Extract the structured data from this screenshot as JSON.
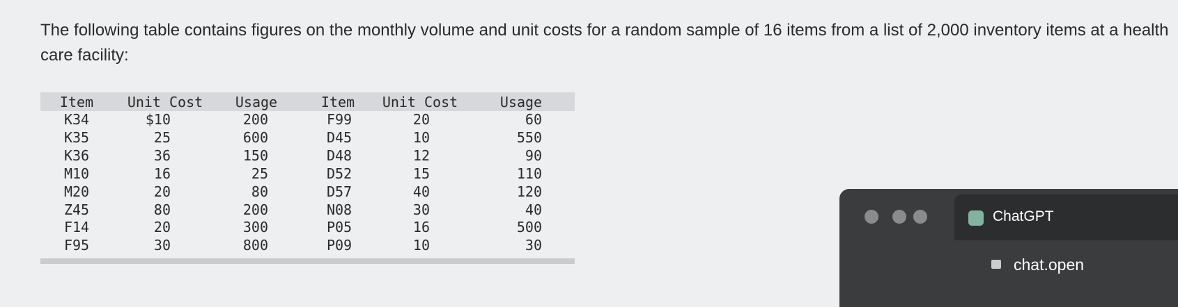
{
  "text": "The following table contains figures on the monthly volume and unit costs for a random sample of 16 items from a list of 2,000 inventory items at a health care facility:",
  "table": {
    "header": [
      "Item",
      "Unit Cost",
      "Usage",
      "Item",
      "Unit Cost",
      "Usage"
    ],
    "rows": [
      [
        "K34",
        "$10",
        "200",
        "F99",
        "20",
        "60"
      ],
      [
        "K35",
        "25",
        "600",
        "D45",
        "10",
        "550"
      ],
      [
        "K36",
        "36",
        "150",
        "D48",
        "12",
        "90"
      ],
      [
        "M10",
        "16",
        "25",
        "D52",
        "15",
        "110"
      ],
      [
        "M20",
        "20",
        "80",
        "D57",
        "40",
        "120"
      ],
      [
        "Z45",
        "80",
        "200",
        "N08",
        "30",
        "40"
      ],
      [
        "F14",
        "20",
        "300",
        "P05",
        "16",
        "500"
      ],
      [
        "F95",
        "30",
        "800",
        "P09",
        "10",
        "30"
      ]
    ]
  },
  "overlay": {
    "tab_title": "ChatGPT",
    "url": "chat.open"
  }
}
